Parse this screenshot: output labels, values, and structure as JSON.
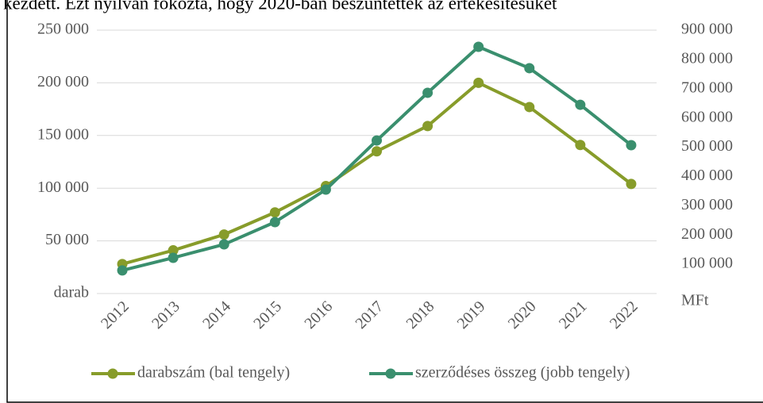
{
  "caption": "kezdett. Ezt nyilván fokozta, hogy 2020-ban beszüntették az értékesítésüket",
  "chart_data": {
    "type": "line",
    "categories": [
      "2012",
      "2013",
      "2014",
      "2015",
      "2016",
      "2017",
      "2018",
      "2019",
      "2020",
      "2021",
      "2022"
    ],
    "series": [
      {
        "name": "darabszám (bal tengely)",
        "color": "#879c2a",
        "values": [
          28000,
          41000,
          56000,
          77000,
          102000,
          135000,
          159000,
          200000,
          177000,
          141000,
          104000
        ]
      },
      {
        "name": "szerződéses összeg (jobb tengely)",
        "color": "#3a8f6e",
        "axis": "y2",
        "values": [
          79000,
          122000,
          168000,
          244000,
          355000,
          523000,
          686000,
          843000,
          770000,
          645000,
          507000
        ]
      }
    ],
    "ylim": [
      0,
      250000
    ],
    "yticks": [
      {
        "value": 0,
        "label": "darab"
      },
      {
        "value": 50000,
        "label": "50 000"
      },
      {
        "value": 100000,
        "label": "100 000"
      },
      {
        "value": 150000,
        "label": "150 000"
      },
      {
        "value": 200000,
        "label": "200 000"
      },
      {
        "value": 250000,
        "label": "250 000"
      }
    ],
    "y2lim": [
      0,
      900000
    ],
    "y2ticks": [
      {
        "value": 0,
        "label": "MFt"
      },
      {
        "value": 100000,
        "label": "100 000"
      },
      {
        "value": 200000,
        "label": "200 000"
      },
      {
        "value": 300000,
        "label": "300 000"
      },
      {
        "value": 400000,
        "label": "400 000"
      },
      {
        "value": 500000,
        "label": "500 000"
      },
      {
        "value": 600000,
        "label": "600 000"
      },
      {
        "value": 700000,
        "label": "700 000"
      },
      {
        "value": 800000,
        "label": "800 000"
      },
      {
        "value": 900000,
        "label": "900 000"
      }
    ],
    "grid": true,
    "legend": "bottom"
  }
}
